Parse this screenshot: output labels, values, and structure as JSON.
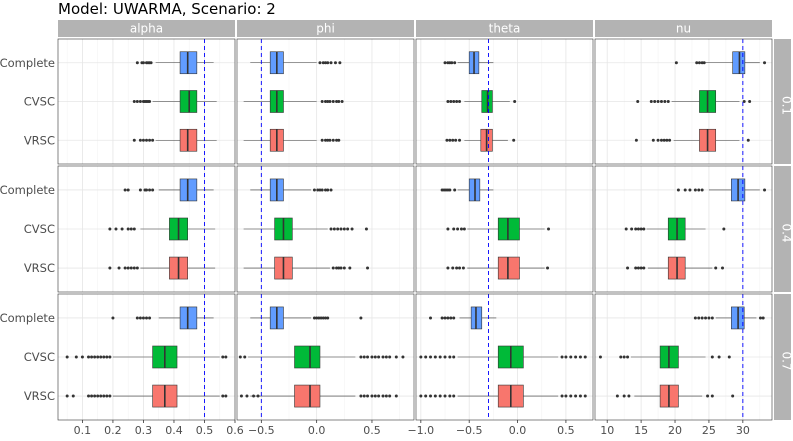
{
  "title": "Model: UWARMA, Scenario: 2",
  "colors": {
    "Complete": "#619CFF",
    "CVSC": "#00BA38",
    "VRSC": "#F8766D",
    "strip": "#b3b3b3",
    "panel_border": "#333333",
    "grid_major": "#e6e6e6",
    "grid_minor": "#f3f3f3",
    "true_value_line": "#0000ff"
  },
  "chart_data": {
    "type": "boxplot",
    "title": "Model: UWARMA, Scenario: 2",
    "grid": true,
    "categories": [
      "Complete",
      "CVSC",
      "VRSC"
    ],
    "parameters": [
      {
        "name": "alpha",
        "true_value": 0.5,
        "xlim": [
          0.02,
          0.6
        ],
        "ticks": [
          0.1,
          0.2,
          0.3,
          0.4,
          0.5,
          0.6
        ],
        "tick_labels": [
          "0.1",
          "0.2",
          "0.3",
          "0.4",
          "0.5",
          "0.6"
        ]
      },
      {
        "name": "phi",
        "true_value": -0.5,
        "xlim": [
          -0.72,
          0.88
        ],
        "ticks": [
          -0.5,
          0.0,
          0.5
        ],
        "tick_labels": [
          "−0.5",
          "0.0",
          "0.5"
        ]
      },
      {
        "name": "theta",
        "true_value": -0.3,
        "xlim": [
          -1.05,
          0.78
        ],
        "ticks": [
          -1.0,
          -0.5,
          0.0,
          0.5
        ],
        "tick_labels": [
          "−1.0",
          "−0.5",
          "0.0",
          "0.5"
        ]
      },
      {
        "name": "nu",
        "true_value": 30,
        "xlim": [
          8.2,
          34.3
        ],
        "ticks": [
          10,
          15,
          20,
          25,
          30
        ],
        "tick_labels": [
          "10",
          "15",
          "20",
          "25",
          "30"
        ]
      }
    ],
    "rows": [
      "0.1",
      "0.4",
      "0.7"
    ],
    "boxes": {
      "0.1": {
        "alpha": {
          "Complete": {
            "whisker_low": 0.34,
            "q1": 0.42,
            "median": 0.445,
            "q3": 0.475,
            "whisker_high": 0.53,
            "outliers": [
              0.28,
              0.295,
              0.3,
              0.31,
              0.315,
              0.32,
              0.325
            ]
          },
          "CVSC": {
            "whisker_low": 0.33,
            "q1": 0.42,
            "median": 0.45,
            "q3": 0.475,
            "whisker_high": 0.54,
            "outliers": [
              0.27,
              0.28,
              0.29,
              0.3,
              0.305,
              0.31,
              0.315,
              0.32
            ]
          },
          "VRSC": {
            "whisker_low": 0.34,
            "q1": 0.42,
            "median": 0.445,
            "q3": 0.475,
            "whisker_high": 0.54,
            "outliers": [
              0.27,
              0.29,
              0.3,
              0.31,
              0.32,
              0.33
            ]
          }
        },
        "phi": {
          "Complete": {
            "whisker_low": -0.6,
            "q1": -0.42,
            "median": -0.36,
            "q3": -0.3,
            "whisker_high": 0.0,
            "outliers": [
              0.03,
              0.06,
              0.08,
              0.1,
              0.13,
              0.17,
              0.21
            ]
          },
          "CVSC": {
            "whisker_low": -0.66,
            "q1": -0.42,
            "median": -0.36,
            "q3": -0.3,
            "whisker_high": 0.0,
            "outliers": [
              0.05,
              0.08,
              0.1,
              0.12,
              0.15,
              0.18,
              0.2,
              0.23
            ]
          },
          "VRSC": {
            "whisker_low": -0.66,
            "q1": -0.42,
            "median": -0.36,
            "q3": -0.3,
            "whisker_high": 0.0,
            "outliers": [
              0.05,
              0.08,
              0.1,
              0.12,
              0.15,
              0.18,
              0.2
            ]
          }
        },
        "theta": {
          "Complete": {
            "whisker_low": -0.62,
            "q1": -0.5,
            "median": -0.45,
            "q3": -0.4,
            "whisker_high": -0.25,
            "outliers": [
              -0.75,
              -0.72,
              -0.7,
              -0.68,
              -0.65
            ]
          },
          "CVSC": {
            "whisker_low": -0.55,
            "q1": -0.37,
            "median": -0.31,
            "q3": -0.26,
            "whisker_high": -0.08,
            "outliers": [
              -0.72,
              -0.69,
              -0.66,
              -0.63,
              -0.6,
              -0.03
            ]
          },
          "VRSC": {
            "whisker_low": -0.55,
            "q1": -0.38,
            "median": -0.32,
            "q3": -0.26,
            "whisker_high": -0.1,
            "outliers": [
              -0.73,
              -0.7,
              -0.67,
              -0.64,
              -0.6,
              -0.04
            ]
          }
        },
        "nu": {
          "Complete": {
            "whisker_low": 24.5,
            "q1": 28.5,
            "median": 29.5,
            "q3": 30.3,
            "whisker_high": 32.5,
            "outliers": [
              20.2,
              23.2,
              23.6,
              24.0,
              24.3,
              33.2
            ]
          },
          "CVSC": {
            "whisker_low": 19.5,
            "q1": 23.6,
            "median": 24.8,
            "q3": 26.0,
            "whisker_high": 29.5,
            "outliers": [
              14.5,
              16.5,
              17.0,
              17.5,
              18.0,
              18.5,
              19.0,
              30.2,
              31.0
            ]
          },
          "VRSC": {
            "whisker_low": 19.8,
            "q1": 23.6,
            "median": 24.8,
            "q3": 26.0,
            "whisker_high": 29.5,
            "outliers": [
              14.3,
              16.8,
              17.5,
              18.0,
              18.4,
              18.8,
              19.2,
              30.8
            ]
          }
        }
      },
      "0.4": {
        "alpha": {
          "Complete": {
            "whisker_low": 0.35,
            "q1": 0.42,
            "median": 0.445,
            "q3": 0.475,
            "whisker_high": 0.53,
            "outliers": [
              0.24,
              0.25,
              0.29,
              0.305,
              0.31,
              0.32,
              0.33
            ]
          },
          "CVSC": {
            "whisker_low": 0.29,
            "q1": 0.385,
            "median": 0.415,
            "q3": 0.445,
            "whisker_high": 0.535,
            "outliers": [
              0.19,
              0.21,
              0.23,
              0.25,
              0.26,
              0.27
            ]
          },
          "VRSC": {
            "whisker_low": 0.29,
            "q1": 0.385,
            "median": 0.415,
            "q3": 0.445,
            "whisker_high": 0.535,
            "outliers": [
              0.19,
              0.22,
              0.24,
              0.25,
              0.26,
              0.27,
              0.28
            ]
          }
        },
        "phi": {
          "Complete": {
            "whisker_low": -0.6,
            "q1": -0.42,
            "median": -0.36,
            "q3": -0.3,
            "whisker_high": -0.05,
            "outliers": [
              -0.02,
              0.01,
              0.03,
              0.05,
              0.08,
              0.1,
              0.13
            ]
          },
          "CVSC": {
            "whisker_low": -0.66,
            "q1": -0.38,
            "median": -0.3,
            "q3": -0.22,
            "whisker_high": 0.1,
            "outliers": [
              0.13,
              0.16,
              0.19,
              0.22,
              0.25,
              0.28,
              0.32,
              0.45
            ]
          },
          "VRSC": {
            "whisker_low": -0.66,
            "q1": -0.38,
            "median": -0.3,
            "q3": -0.22,
            "whisker_high": 0.12,
            "outliers": [
              0.15,
              0.18,
              0.2,
              0.22,
              0.25,
              0.3,
              0.46
            ]
          }
        },
        "theta": {
          "Complete": {
            "whisker_low": -0.62,
            "q1": -0.5,
            "median": -0.44,
            "q3": -0.39,
            "whisker_high": -0.25,
            "outliers": [
              -0.78,
              -0.76,
              -0.74,
              -0.72,
              -0.7,
              -0.65
            ]
          },
          "CVSC": {
            "whisker_low": -0.52,
            "q1": -0.2,
            "median": -0.1,
            "q3": 0.02,
            "whisker_high": 0.28,
            "outliers": [
              -0.72,
              -0.66,
              -0.62,
              -0.58,
              -0.55,
              0.32
            ]
          },
          "VRSC": {
            "whisker_low": -0.52,
            "q1": -0.2,
            "median": -0.1,
            "q3": 0.02,
            "whisker_high": 0.28,
            "outliers": [
              -0.72,
              -0.67,
              -0.63,
              -0.6,
              -0.56,
              0.31
            ]
          }
        },
        "nu": {
          "Complete": {
            "whisker_low": 25.0,
            "q1": 28.3,
            "median": 29.3,
            "q3": 30.3,
            "whisker_high": 32.5,
            "outliers": [
              20.5,
              21.5,
              22.2,
              23.0,
              23.5,
              24.0,
              33.2
            ]
          },
          "CVSC": {
            "whisker_low": 15.8,
            "q1": 19.0,
            "median": 20.3,
            "q3": 21.5,
            "whisker_high": 24.5,
            "outliers": [
              12.8,
              13.6,
              14.2,
              14.6,
              15.0,
              15.4,
              27.2
            ]
          },
          "VRSC": {
            "whisker_low": 16.0,
            "q1": 19.0,
            "median": 20.3,
            "q3": 21.5,
            "whisker_high": 25.5,
            "outliers": [
              13.0,
              14.2,
              14.6,
              15.0,
              15.4,
              26.0,
              27.0
            ]
          }
        }
      },
      "0.7": {
        "alpha": {
          "Complete": {
            "whisker_low": 0.35,
            "q1": 0.42,
            "median": 0.445,
            "q3": 0.475,
            "whisker_high": 0.53,
            "outliers": [
              0.2,
              0.28,
              0.29,
              0.3,
              0.31,
              0.32
            ]
          },
          "CVSC": {
            "whisker_low": 0.2,
            "q1": 0.33,
            "median": 0.37,
            "q3": 0.41,
            "whisker_high": 0.55,
            "outliers": [
              0.05,
              0.08,
              0.1,
              0.12,
              0.13,
              0.14,
              0.15,
              0.16,
              0.17,
              0.18,
              0.19,
              0.56,
              0.57
            ]
          },
          "VRSC": {
            "whisker_low": 0.2,
            "q1": 0.33,
            "median": 0.37,
            "q3": 0.41,
            "whisker_high": 0.55,
            "outliers": [
              0.05,
              0.07,
              0.12,
              0.13,
              0.14,
              0.15,
              0.16,
              0.17,
              0.18,
              0.19,
              0.56,
              0.57
            ]
          }
        },
        "phi": {
          "Complete": {
            "whisker_low": -0.6,
            "q1": -0.42,
            "median": -0.36,
            "q3": -0.3,
            "whisker_high": -0.05,
            "outliers": [
              -0.02,
              0.0,
              0.02,
              0.04,
              0.06,
              0.08,
              0.1,
              0.4
            ]
          },
          "CVSC": {
            "whisker_low": -0.62,
            "q1": -0.2,
            "median": -0.06,
            "q3": 0.03,
            "whisker_high": 0.35,
            "outliers": [
              -0.69,
              -0.65,
              0.4,
              0.43,
              0.46,
              0.5,
              0.53,
              0.56,
              0.6,
              0.63,
              0.66,
              0.72,
              0.78
            ]
          },
          "VRSC": {
            "whisker_low": -0.6,
            "q1": -0.2,
            "median": -0.06,
            "q3": 0.03,
            "whisker_high": 0.35,
            "outliers": [
              -0.68,
              -0.63,
              -0.57,
              -0.53,
              0.4,
              0.43,
              0.46,
              0.5,
              0.53,
              0.56,
              0.6,
              0.63,
              0.66,
              0.72
            ]
          }
        },
        "theta": {
          "Complete": {
            "whisker_low": -0.6,
            "q1": -0.48,
            "median": -0.43,
            "q3": -0.37,
            "whisker_high": -0.22,
            "outliers": [
              -0.9,
              -0.78,
              -0.75,
              -0.72,
              -0.69,
              -0.66
            ]
          },
          "CVSC": {
            "whisker_low": -0.62,
            "q1": -0.2,
            "median": -0.07,
            "q3": 0.06,
            "whisker_high": 0.42,
            "outliers": [
              -1.0,
              -0.95,
              -0.9,
              -0.85,
              -0.8,
              -0.75,
              -0.7,
              -0.66,
              0.46,
              0.5,
              0.55,
              0.6,
              0.65,
              0.7
            ]
          },
          "VRSC": {
            "whisker_low": -0.62,
            "q1": -0.2,
            "median": -0.07,
            "q3": 0.06,
            "whisker_high": 0.42,
            "outliers": [
              -1.0,
              -0.95,
              -0.9,
              -0.85,
              -0.8,
              -0.75,
              -0.7,
              -0.66,
              0.46,
              0.5,
              0.55,
              0.6,
              0.65,
              0.7
            ]
          }
        },
        "nu": {
          "Complete": {
            "whisker_low": 26.0,
            "q1": 28.3,
            "median": 29.3,
            "q3": 30.2,
            "whisker_high": 32.0,
            "outliers": [
              23.0,
              23.5,
              24.0,
              24.5,
              25.0,
              25.5,
              32.6,
              33.0
            ]
          },
          "CVSC": {
            "whisker_low": 13.5,
            "q1": 17.8,
            "median": 19.1,
            "q3": 20.5,
            "whisker_high": 24.5,
            "outliers": [
              9.0,
              12.0,
              12.5,
              13.0,
              25.5,
              26.5,
              28.0
            ]
          },
          "VRSC": {
            "whisker_low": 14.0,
            "q1": 17.8,
            "median": 19.1,
            "q3": 20.5,
            "whisker_high": 24.0,
            "outliers": [
              11.5,
              12.5,
              13.2,
              24.8,
              25.5,
              28.5
            ]
          }
        }
      }
    }
  }
}
